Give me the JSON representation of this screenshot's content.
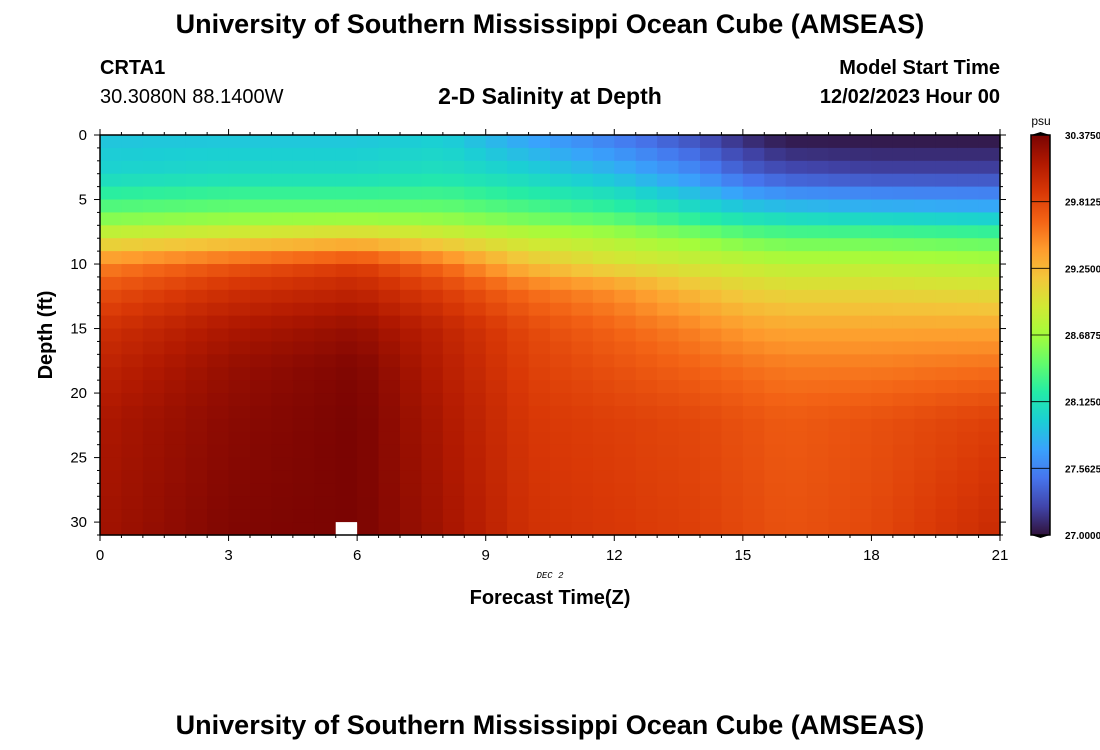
{
  "header": {
    "title": "University of Southern Mississippi Ocean Cube (AMSEAS)",
    "station": "CRTA1",
    "coordinates": "30.3080N  88.1400W",
    "plot_title": "2-D Salinity at Depth",
    "model_start_label": "Model Start Time",
    "model_start_value": "12/02/2023 Hour 00"
  },
  "footer": {
    "title": "University of Southern Mississippi Ocean Cube (AMSEAS)"
  },
  "colors": {
    "missing": "#ffffff",
    "frame": "#000000"
  },
  "chart_data": {
    "type": "heatmap",
    "title": "2-D Salinity at Depth",
    "xlabel": "Forecast Time(Z)",
    "ylabel": "Depth (ft)",
    "x_sublabel": "DEC 2",
    "xlim": [
      0,
      21
    ],
    "ylim": [
      31,
      0
    ],
    "x_ticks": [
      0,
      3,
      6,
      9,
      12,
      15,
      18,
      21
    ],
    "y_ticks": [
      0,
      5,
      10,
      15,
      20,
      25,
      30
    ],
    "x_step": 0.5,
    "y_step": 1,
    "missing_cell": {
      "time": 5.5,
      "depth": 30
    },
    "colorbar": {
      "unit": "psu",
      "min": 27.0,
      "max": 30.375,
      "tick_labels": [
        "30.3750",
        "29.8125",
        "29.2500",
        "28.6875",
        "28.1250",
        "27.5625",
        "27.0000"
      ],
      "tick_values": [
        30.375,
        29.8125,
        29.25,
        28.6875,
        28.125,
        27.5625,
        27.0
      ],
      "colormap": [
        "#30123b",
        "#4145ab",
        "#4675ed",
        "#39a2fc",
        "#1bcfd4",
        "#24eca6",
        "#61fc6c",
        "#a4fc3b",
        "#d1e834",
        "#f3c63a",
        "#fe9b2d",
        "#f36315",
        "#d93806",
        "#b11901",
        "#7a0402"
      ]
    },
    "salinity_profiles": {
      "depths": [
        0,
        3,
        6,
        8,
        10,
        12,
        15,
        18,
        22,
        31
      ],
      "times": [
        0,
        3,
        6,
        8,
        10,
        12,
        14,
        15,
        16,
        18,
        21
      ],
      "values": [
        [
          27.9,
          27.9,
          27.9,
          27.95,
          27.7,
          27.5,
          27.25,
          27.1,
          27.0,
          27.0,
          27.0
        ],
        [
          28.0,
          28.05,
          28.05,
          28.1,
          28.0,
          27.85,
          27.6,
          27.4,
          27.3,
          27.25,
          27.25
        ],
        [
          28.45,
          28.5,
          28.5,
          28.5,
          28.4,
          28.3,
          28.1,
          28.0,
          27.95,
          27.9,
          27.85
        ],
        [
          28.95,
          29.05,
          29.15,
          29.0,
          28.85,
          28.75,
          28.6,
          28.5,
          28.45,
          28.45,
          28.4
        ],
        [
          29.5,
          29.7,
          29.85,
          29.6,
          29.2,
          29.0,
          28.9,
          28.85,
          28.8,
          28.8,
          28.75
        ],
        [
          29.75,
          29.95,
          30.05,
          29.85,
          29.6,
          29.45,
          29.2,
          29.1,
          29.05,
          29.05,
          29.0
        ],
        [
          29.95,
          30.15,
          30.25,
          30.05,
          29.8,
          29.65,
          29.5,
          29.4,
          29.35,
          29.35,
          29.35
        ],
        [
          30.05,
          30.25,
          30.35,
          30.1,
          29.85,
          29.75,
          29.65,
          29.6,
          29.55,
          29.55,
          29.6
        ],
        [
          30.15,
          30.3,
          30.375,
          30.15,
          29.9,
          29.85,
          29.8,
          29.75,
          29.7,
          29.75,
          29.85
        ],
        [
          30.2,
          30.35,
          30.375,
          30.2,
          29.95,
          29.9,
          29.85,
          29.8,
          29.75,
          29.8,
          30.0
        ]
      ]
    }
  }
}
